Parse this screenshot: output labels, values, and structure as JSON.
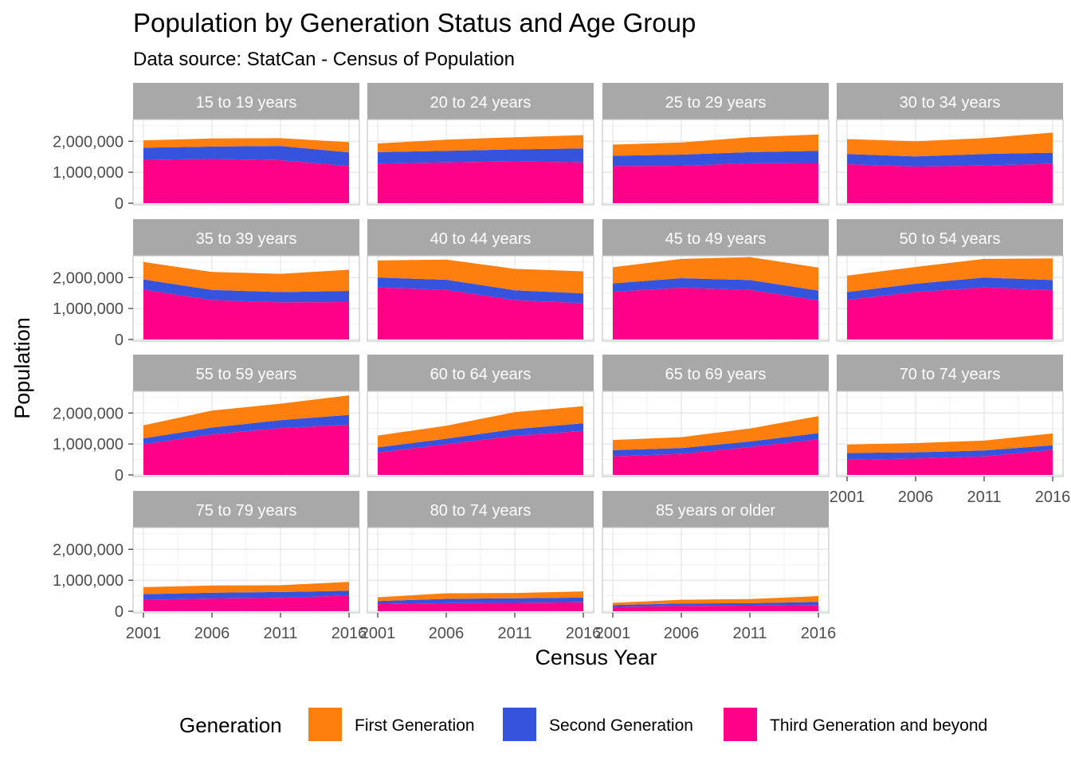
{
  "title": "Population by Generation Status and Age Group",
  "subtitle": "Data source: StatCan - Census of Population",
  "colors": {
    "First Generation": "#FF7F0E",
    "Second Generation": "#3653DE",
    "Third Generation and beyond": "#FF0088",
    "strip": "#A8A8A8",
    "grid": "#E4E4E4",
    "panel_border": "#C8C8C8"
  },
  "legend": {
    "title": "Generation",
    "placement": "bottom",
    "entries": [
      "First Generation",
      "Second Generation",
      "Third Generation and beyond"
    ]
  },
  "chart_data": {
    "type": "area",
    "stacked": true,
    "faceted": true,
    "facet_columns": 4,
    "xlabel": "Census Year",
    "ylabel": "Population",
    "x": [
      2001,
      2006,
      2011,
      2016
    ],
    "x_tick_labels": [
      "2001",
      "2006",
      "2011",
      "2016"
    ],
    "ylim": [
      0,
      2650000
    ],
    "y_ticks": [
      0,
      1000000,
      2000000
    ],
    "y_tick_labels": [
      "0",
      "1,000,000",
      "2,000,000"
    ],
    "grid": true,
    "series_order": [
      "Third Generation and beyond",
      "Second Generation",
      "First Generation"
    ],
    "panels": [
      {
        "label": "15 to 19 years",
        "third": [
          1400000,
          1430000,
          1390000,
          1200000
        ],
        "second": [
          390000,
          400000,
          460000,
          440000
        ],
        "first": [
          240000,
          260000,
          250000,
          330000
        ]
      },
      {
        "label": "20 to 24 years",
        "third": [
          1280000,
          1320000,
          1350000,
          1320000
        ],
        "second": [
          370000,
          370000,
          390000,
          450000
        ],
        "first": [
          280000,
          360000,
          390000,
          430000
        ]
      },
      {
        "label": "25 to 29 years",
        "third": [
          1200000,
          1210000,
          1290000,
          1300000
        ],
        "second": [
          330000,
          360000,
          360000,
          390000
        ],
        "first": [
          360000,
          390000,
          480000,
          530000
        ]
      },
      {
        "label": "30 to 34 years",
        "third": [
          1260000,
          1180000,
          1220000,
          1270000
        ],
        "second": [
          330000,
          330000,
          370000,
          360000
        ],
        "first": [
          480000,
          490000,
          510000,
          650000
        ]
      },
      {
        "label": "35 to 39 years",
        "third": [
          1610000,
          1270000,
          1200000,
          1210000
        ],
        "second": [
          330000,
          330000,
          330000,
          360000
        ],
        "first": [
          560000,
          580000,
          590000,
          680000
        ]
      },
      {
        "label": "40 to 44 years",
        "third": [
          1680000,
          1600000,
          1270000,
          1170000
        ],
        "second": [
          320000,
          330000,
          320000,
          320000
        ],
        "first": [
          550000,
          650000,
          690000,
          710000
        ]
      },
      {
        "label": "45 to 49 years",
        "third": [
          1540000,
          1670000,
          1600000,
          1260000
        ],
        "second": [
          270000,
          310000,
          320000,
          320000
        ],
        "first": [
          520000,
          620000,
          740000,
          740000
        ]
      },
      {
        "label": "50 to 54 years",
        "third": [
          1280000,
          1530000,
          1680000,
          1590000
        ],
        "second": [
          250000,
          270000,
          320000,
          330000
        ],
        "first": [
          530000,
          540000,
          600000,
          700000
        ]
      },
      {
        "label": "55 to 59 years",
        "third": [
          990000,
          1310000,
          1510000,
          1620000
        ],
        "second": [
          190000,
          220000,
          260000,
          320000
        ],
        "first": [
          420000,
          550000,
          530000,
          630000
        ]
      },
      {
        "label": "60 to 64 years",
        "third": [
          720000,
          990000,
          1260000,
          1420000
        ],
        "second": [
          170000,
          180000,
          220000,
          250000
        ],
        "first": [
          380000,
          420000,
          550000,
          550000
        ]
      },
      {
        "label": "65 to 69 years",
        "third": [
          600000,
          680000,
          900000,
          1150000
        ],
        "second": [
          200000,
          190000,
          180000,
          200000
        ],
        "first": [
          330000,
          350000,
          420000,
          550000
        ]
      },
      {
        "label": "70 to 74 years",
        "third": [
          490000,
          530000,
          600000,
          810000
        ],
        "second": [
          220000,
          200000,
          190000,
          150000
        ],
        "first": [
          270000,
          300000,
          320000,
          380000
        ]
      },
      {
        "label": "75 to 79 years",
        "third": [
          370000,
          410000,
          430000,
          510000
        ],
        "second": [
          180000,
          190000,
          190000,
          150000
        ],
        "first": [
          230000,
          230000,
          220000,
          290000
        ]
      },
      {
        "label": "80 to 74 years",
        "third": [
          230000,
          260000,
          270000,
          290000
        ],
        "second": [
          100000,
          140000,
          150000,
          150000
        ],
        "first": [
          120000,
          180000,
          170000,
          200000
        ]
      },
      {
        "label": "85 years or older",
        "third": [
          140000,
          170000,
          180000,
          200000
        ],
        "second": [
          60000,
          80000,
          80000,
          100000
        ],
        "first": [
          70000,
          120000,
          130000,
          190000
        ]
      }
    ]
  }
}
